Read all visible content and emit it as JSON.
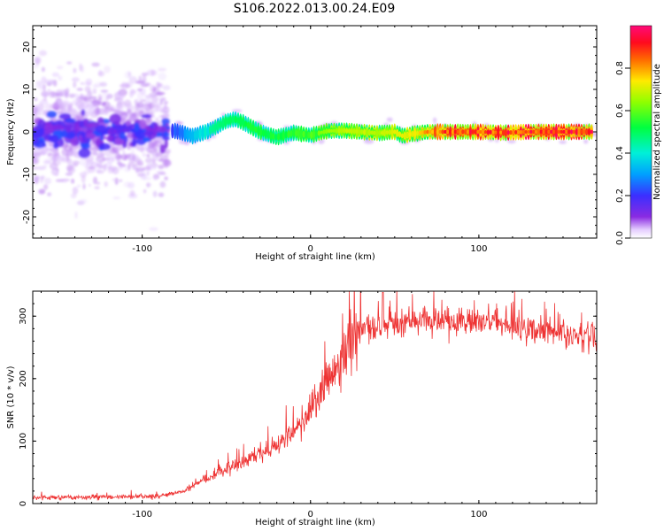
{
  "figure_title": "S106.2022.013.00.24.E09",
  "chart_data": [
    {
      "type": "heatmap",
      "xlabel": "Height of straight line (km)",
      "ylabel": "Frequency (Hz)",
      "xlim": [
        -165,
        170
      ],
      "ylim": [
        -25,
        25
      ],
      "xticks": [
        -100,
        0,
        100
      ],
      "yticks": [
        -20,
        -10,
        0,
        10,
        20
      ],
      "colorbar": {
        "label": "Normalized spectral amplitude",
        "range": [
          0,
          1
        ],
        "ticks": [
          0.0,
          0.2,
          0.4,
          0.6,
          0.8
        ],
        "colormap": "rainbow (white-purple-blue-cyan-green-yellow-red-magenta)"
      },
      "ridge_center_hz": [
        [
          -80,
          0.2
        ],
        [
          -70,
          -1.0
        ],
        [
          -60,
          0.3
        ],
        [
          -50,
          2.5
        ],
        [
          -45,
          3.0
        ],
        [
          -40,
          2.2
        ],
        [
          -30,
          0.0
        ],
        [
          -20,
          -1.3
        ],
        [
          -10,
          -0.2
        ],
        [
          0,
          -0.8
        ],
        [
          10,
          0.2
        ],
        [
          20,
          0.3
        ],
        [
          30,
          0.0
        ],
        [
          40,
          -0.3
        ],
        [
          50,
          0.0
        ],
        [
          55,
          -1.0
        ],
        [
          60,
          -0.5
        ],
        [
          70,
          0.0
        ],
        [
          80,
          0.0
        ],
        [
          100,
          0.0
        ],
        [
          115,
          -0.2
        ],
        [
          130,
          0.0
        ],
        [
          150,
          0.0
        ],
        [
          165,
          0.0
        ]
      ],
      "ridge_amplitude": [
        [
          -80,
          0.25
        ],
        [
          -60,
          0.45
        ],
        [
          -40,
          0.55
        ],
        [
          -20,
          0.55
        ],
        [
          0,
          0.6
        ],
        [
          20,
          0.7
        ],
        [
          40,
          0.7
        ],
        [
          60,
          0.75
        ],
        [
          80,
          0.95
        ],
        [
          100,
          0.97
        ],
        [
          130,
          0.98
        ],
        [
          165,
          0.98
        ]
      ],
      "noise_region_km": [
        -165,
        -85
      ]
    },
    {
      "type": "line",
      "xlabel": "Height of straight line (km)",
      "ylabel": "SNR (10 * v/v)",
      "xlim": [
        -165,
        170
      ],
      "ylim": [
        0,
        340
      ],
      "xticks": [
        -100,
        0,
        100
      ],
      "yticks": [
        0,
        100,
        200,
        300
      ],
      "color": "#ee3333",
      "series_trend": [
        [
          -165,
          10
        ],
        [
          -130,
          10
        ],
        [
          -90,
          12
        ],
        [
          -75,
          20
        ],
        [
          -65,
          35
        ],
        [
          -50,
          55
        ],
        [
          -40,
          65
        ],
        [
          -30,
          80
        ],
        [
          -20,
          95
        ],
        [
          -10,
          115
        ],
        [
          0,
          150
        ],
        [
          10,
          195
        ],
        [
          20,
          235
        ],
        [
          25,
          265
        ],
        [
          30,
          278
        ],
        [
          40,
          285
        ],
        [
          50,
          290
        ],
        [
          60,
          292
        ],
        [
          80,
          293
        ],
        [
          100,
          290
        ],
        [
          120,
          285
        ],
        [
          140,
          275
        ],
        [
          155,
          268
        ],
        [
          170,
          262
        ]
      ],
      "peak": [
        43,
        338
      ]
    }
  ]
}
